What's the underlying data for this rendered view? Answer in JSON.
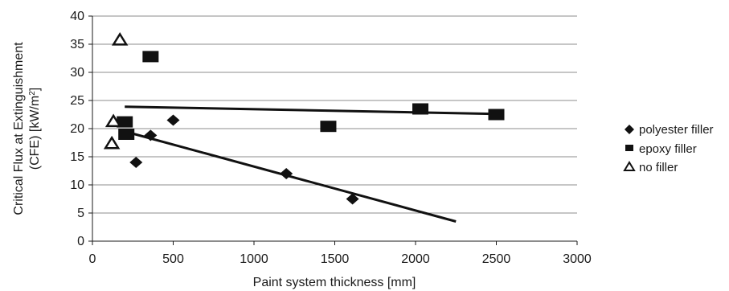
{
  "chart_data": {
    "type": "scatter",
    "xlabel": "Paint system thickness [mm]",
    "ylabel_line1": "Critical Flux at Extinguishment",
    "ylabel_line2_prefix": "(CFE) [kW/m",
    "ylabel_line2_sup": "2",
    "ylabel_line2_suffix": "]",
    "xlim": [
      0,
      3000
    ],
    "ylim": [
      0,
      40
    ],
    "xticks": [
      0,
      500,
      1000,
      1500,
      2000,
      2500,
      3000
    ],
    "yticks": [
      0,
      5,
      10,
      15,
      20,
      25,
      30,
      35,
      40
    ],
    "grid": "horizontal",
    "legend_position": "right",
    "series": [
      {
        "name": "polyester filler",
        "marker": "diamond",
        "color": "#111111",
        "points": [
          [
            270,
            14
          ],
          [
            360,
            18.8
          ],
          [
            500,
            21.5
          ],
          [
            1200,
            12
          ],
          [
            1610,
            7.5
          ]
        ],
        "trendline": [
          [
            200,
            19.5
          ],
          [
            2250,
            3.5
          ]
        ]
      },
      {
        "name": "epoxy filler",
        "marker": "square",
        "color": "#111111",
        "points": [
          [
            200,
            21.2
          ],
          [
            210,
            19
          ],
          [
            360,
            32.8
          ],
          [
            1460,
            20.4
          ],
          [
            2030,
            23.5
          ],
          [
            2500,
            22.5
          ]
        ],
        "trendline": [
          [
            200,
            23.9
          ],
          [
            2500,
            22.6
          ]
        ]
      },
      {
        "name": "no filler",
        "marker": "triangle",
        "color": "#111111",
        "points": [
          [
            170,
            35.8
          ],
          [
            130,
            21.3
          ],
          [
            120,
            17.4
          ]
        ]
      }
    ]
  }
}
